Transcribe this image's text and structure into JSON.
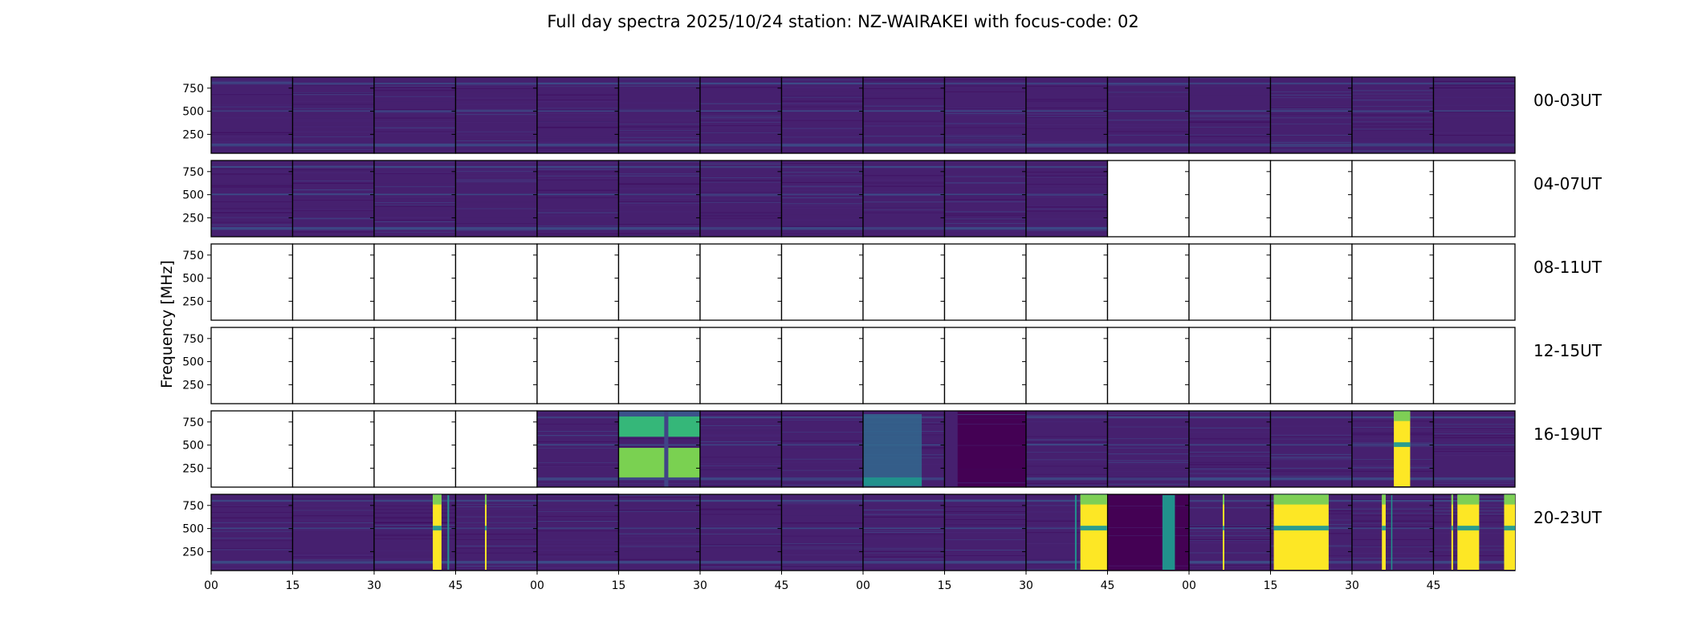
{
  "chart_data": {
    "type": "heatmap",
    "title": "Full day spectra 2025/10/24 station: NZ-WAIRAKEI with focus-code: 02",
    "ylabel": "Frequency [MHz]",
    "xlabel": "",
    "ylim": [
      45,
      870
    ],
    "yticks": [
      250,
      500,
      750
    ],
    "ytick_labels": [
      "250",
      "500",
      "750"
    ],
    "xtick_labels": [
      "00",
      "15",
      "30",
      "45",
      "00",
      "15",
      "30",
      "45",
      "00",
      "15",
      "30",
      "45",
      "00",
      "15",
      "30",
      "45"
    ],
    "row_labels": [
      "00-03UT",
      "04-07UT",
      "08-11UT",
      "12-15UT",
      "16-19UT",
      "20-23UT"
    ],
    "panel_minutes": 15,
    "colormap": "viridis",
    "colors": {
      "very_low": "#440154",
      "low": "#46206f",
      "teal": "#21918c",
      "green": "#5ec962",
      "yellow": "#fde725",
      "mid": "#31688e"
    },
    "panel_levels": [
      [
        "low",
        "low",
        "low",
        "low",
        "low",
        "low",
        "low",
        "low",
        "low",
        "low",
        "low",
        "low",
        "low",
        "low",
        "low",
        "low"
      ],
      [
        "low",
        "low",
        "low",
        "low",
        "low",
        "low",
        "low",
        "low",
        "low",
        "low",
        "low",
        "empty",
        "empty",
        "empty",
        "empty",
        "empty"
      ],
      [
        "empty",
        "empty",
        "empty",
        "empty",
        "empty",
        "empty",
        "empty",
        "empty",
        "empty",
        "empty",
        "empty",
        "empty",
        "empty",
        "empty",
        "empty",
        "empty"
      ],
      [
        "empty",
        "empty",
        "empty",
        "empty",
        "empty",
        "empty",
        "empty",
        "empty",
        "empty",
        "empty",
        "empty",
        "empty",
        "empty",
        "empty",
        "empty",
        "empty"
      ],
      [
        "empty",
        "empty",
        "empty",
        "empty",
        "low",
        "elevated-green",
        "low",
        "low",
        "elevated-teal",
        "very-low",
        "low",
        "low",
        "low",
        "low",
        "low",
        "low"
      ],
      [
        "low",
        "low",
        "low",
        "low",
        "low",
        "low",
        "low",
        "low",
        "low",
        "low",
        "low",
        "very-low",
        "low",
        "low",
        "low",
        "low"
      ]
    ],
    "bursts": [
      {
        "row": 4,
        "col": 14,
        "start_min": 7.7,
        "end_min": 10.7,
        "level": "saturated"
      },
      {
        "row": 5,
        "col": 2,
        "start_min": 10.8,
        "end_min": 12.4,
        "level": "saturated"
      },
      {
        "row": 5,
        "col": 2,
        "start_min": 13.5,
        "end_min": 13.8,
        "level": "teal"
      },
      {
        "row": 5,
        "col": 3,
        "start_min": 5.4,
        "end_min": 5.7,
        "level": "saturated"
      },
      {
        "row": 5,
        "col": 10,
        "start_min": 9.0,
        "end_min": 9.3,
        "level": "teal"
      },
      {
        "row": 5,
        "col": 10,
        "start_min": 10.0,
        "end_min": 14.9,
        "level": "saturated"
      },
      {
        "row": 5,
        "col": 11,
        "start_min": 10.1,
        "end_min": 12.4,
        "level": "teal"
      },
      {
        "row": 5,
        "col": 12,
        "start_min": 6.2,
        "end_min": 6.5,
        "level": "saturated"
      },
      {
        "row": 5,
        "col": 13,
        "start_min": 0.6,
        "end_min": 10.7,
        "level": "saturated"
      },
      {
        "row": 5,
        "col": 14,
        "start_min": 5.5,
        "end_min": 6.2,
        "level": "saturated"
      },
      {
        "row": 5,
        "col": 14,
        "start_min": 7.2,
        "end_min": 7.4,
        "level": "teal"
      },
      {
        "row": 5,
        "col": 15,
        "start_min": 3.3,
        "end_min": 3.6,
        "level": "saturated"
      },
      {
        "row": 5,
        "col": 15,
        "start_min": 4.4,
        "end_min": 8.4,
        "level": "saturated"
      },
      {
        "row": 5,
        "col": 15,
        "start_min": 13.0,
        "end_min": 15.0,
        "level": "saturated"
      }
    ]
  }
}
